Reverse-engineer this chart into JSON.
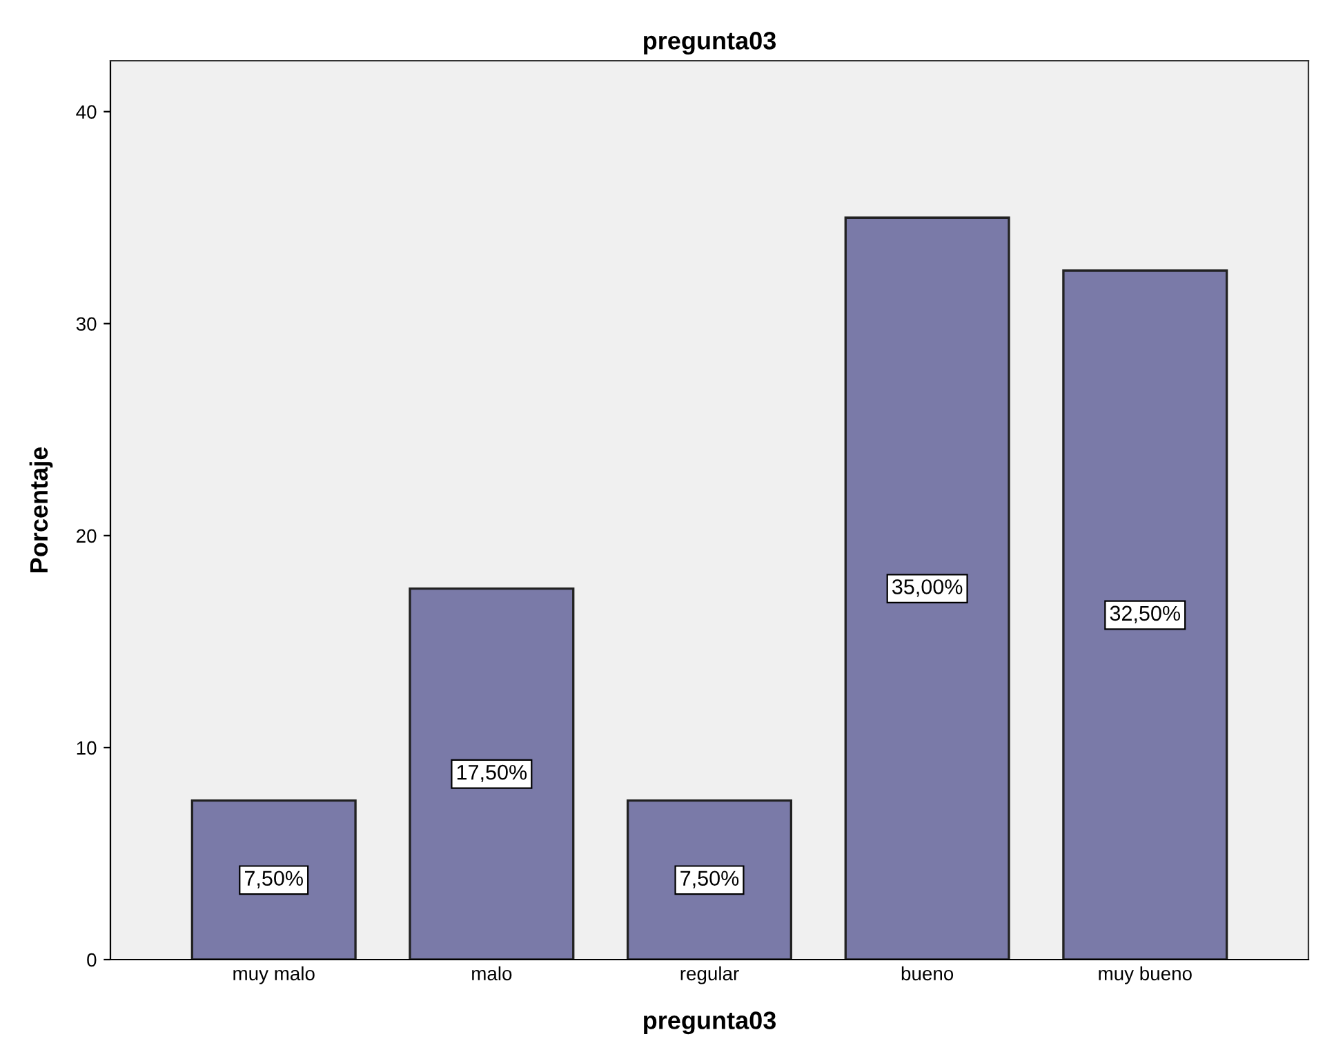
{
  "chart_data": {
    "type": "bar",
    "title": "pregunta03",
    "xlabel": "pregunta03",
    "ylabel": "Porcentaje",
    "categories": [
      "muy malo",
      "malo",
      "regular",
      "bueno",
      "muy bueno"
    ],
    "values": [
      7.5,
      17.5,
      7.5,
      35,
      32.5
    ],
    "value_labels": [
      "7,50%",
      "17,50%",
      "7,50%",
      "35,00%",
      "32,50%"
    ],
    "color": "#7a7aa8",
    "ylim": [
      0,
      42.4
    ],
    "yticks": [
      0,
      10,
      20,
      30,
      40
    ],
    "grid": false,
    "legend": false
  }
}
